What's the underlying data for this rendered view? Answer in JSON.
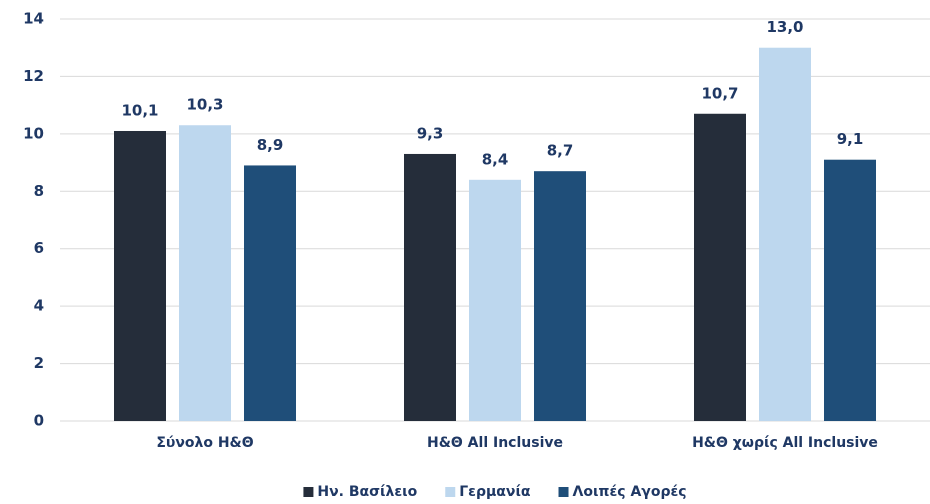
{
  "chart_data": {
    "type": "bar",
    "categories": [
      "Σύνολο Η&Θ",
      "Η&Θ All Inclusive",
      "Η&Θ χωρίς All Inclusive"
    ],
    "series": [
      {
        "name": "Ην. Βασίλειο",
        "color": "#252d3a",
        "values": [
          10.1,
          9.3,
          10.7
        ],
        "value_labels": [
          "10,1",
          "9,3",
          "10,7"
        ]
      },
      {
        "name": "Γερμανία",
        "color": "#bdd7ee",
        "values": [
          10.3,
          8.4,
          13.0
        ],
        "value_labels": [
          "10,3",
          "8,4",
          "13,0"
        ]
      },
      {
        "name": "Λοιπές Αγορές",
        "color": "#1f4e79",
        "values": [
          8.9,
          8.7,
          9.1
        ],
        "value_labels": [
          "8,9",
          "8,7",
          "9,1"
        ]
      }
    ],
    "ylim": [
      0,
      14
    ],
    "yticks": [
      0,
      2,
      4,
      6,
      8,
      10,
      12,
      14
    ],
    "grid": true,
    "legend": "bottom"
  }
}
